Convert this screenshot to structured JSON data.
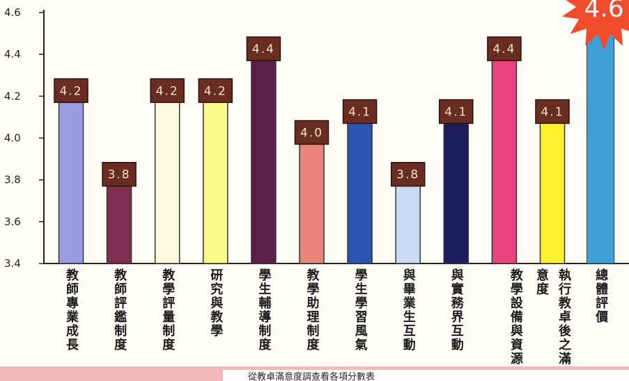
{
  "chart_data": {
    "type": "bar",
    "ylim": [
      3.4,
      4.6
    ],
    "yticks": [
      "3.4",
      "3.6",
      "3.8",
      "4.0",
      "4.2",
      "4.4",
      "4.6"
    ],
    "categories": [
      "教師專業成長",
      "教師評鑑制度",
      "教學評量制度",
      "研究與教學",
      "學生輔導制度",
      "教學助理制度",
      "學生學習風氣",
      "與畢業生互動",
      "與實務界互動",
      "教學設備與資源",
      "執行教卓後之滿意度",
      "總體評價"
    ],
    "values": [
      4.2,
      3.8,
      4.2,
      4.2,
      4.4,
      4.0,
      4.1,
      3.8,
      4.1,
      4.4,
      4.1,
      4.6
    ],
    "value_labels": [
      "4.2",
      "3.8",
      "4.2",
      "4.2",
      "4.4",
      "4.0",
      "4.1",
      "3.8",
      "4.1",
      "4.4",
      "4.1",
      "4.6"
    ],
    "colors": [
      "#9b9be0",
      "#7e2e4e",
      "#fffbe0",
      "#fbf88a",
      "#5c1e4a",
      "#e8847a",
      "#2a55b0",
      "#c8dcf6",
      "#1e1e5e",
      "#e8437e",
      "#fff12e",
      "#3fa0d8"
    ],
    "label_box_color": "#6a2d22",
    "star_color": "#f04c2c"
  },
  "footer": {
    "caption": "從教卓滿意度調查看各項分數表"
  }
}
